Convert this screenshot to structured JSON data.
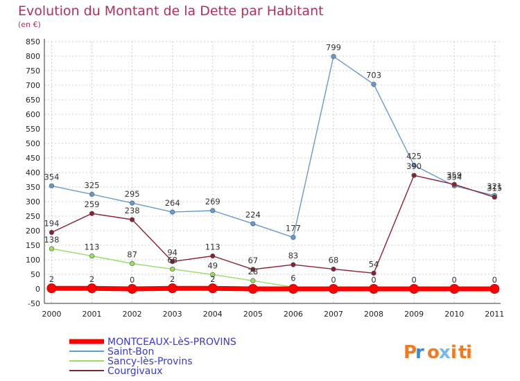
{
  "chart_data": {
    "type": "line",
    "title": "Evolution du Montant de la Dette par Habitant",
    "subtitle": "(en €)",
    "xlabel": "",
    "ylabel": "",
    "ylim": [
      -50,
      850
    ],
    "yticks": [
      -50,
      0,
      50,
      100,
      150,
      200,
      250,
      300,
      350,
      400,
      450,
      500,
      550,
      600,
      650,
      700,
      750,
      800,
      850
    ],
    "x": [
      "2000",
      "2001",
      "2002",
      "2003",
      "2004",
      "2005",
      "2006",
      "2007",
      "2008",
      "2009",
      "2010",
      "2011"
    ],
    "grid": true,
    "legend_position": "bottom-left",
    "series": [
      {
        "name": "MONTCEAUX-LèS-PROVINS",
        "color": "#ff0000",
        "values": [
          2,
          2,
          0,
          2,
          2,
          0,
          0,
          0,
          0,
          0,
          0,
          0
        ],
        "labels": [
          "2",
          "2",
          "0",
          "2",
          "2",
          "",
          "",
          "",
          "",
          "",
          "",
          ""
        ]
      },
      {
        "name": "Saint-Bon",
        "color": "#6699cc",
        "values": [
          354,
          325,
          295,
          264,
          269,
          224,
          177,
          799,
          703,
          425,
          354,
          321
        ],
        "labels": [
          "354",
          "325",
          "295",
          "264",
          "269",
          "224",
          "177",
          "799",
          "703",
          "425",
          "354",
          "321"
        ]
      },
      {
        "name": "Sancy-lès-Provins",
        "color": "#99dd66",
        "values": [
          138,
          113,
          87,
          68,
          49,
          28,
          6,
          0,
          0,
          0,
          0,
          0
        ],
        "labels": [
          "138",
          "113",
          "87",
          "68",
          "49",
          "28",
          "6",
          "0",
          "0",
          "0",
          "0",
          "0"
        ]
      },
      {
        "name": "Courgivaux",
        "color": "#882233",
        "values": [
          194,
          259,
          238,
          94,
          113,
          67,
          83,
          68,
          54,
          390,
          359,
          315
        ],
        "labels": [
          "194",
          "259",
          "238",
          "94",
          "113",
          "67",
          "83",
          "68",
          "54",
          "390",
          "359",
          "315"
        ]
      }
    ]
  },
  "logo": {
    "text": "Proxiti"
  }
}
